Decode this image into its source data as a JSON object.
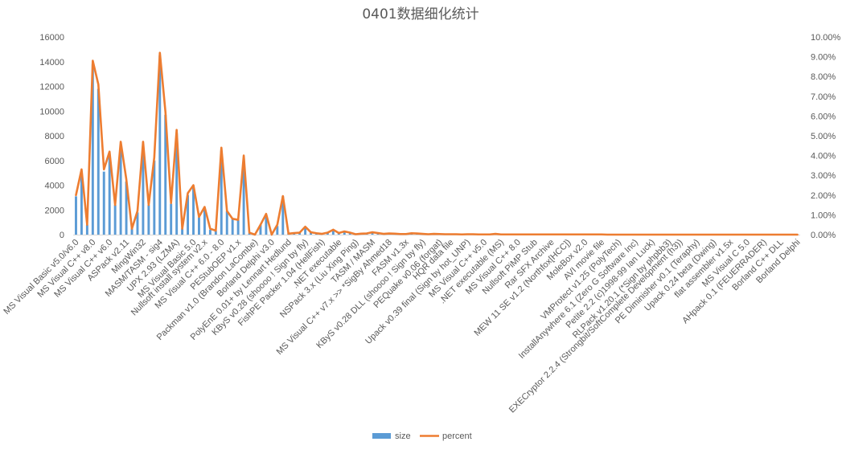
{
  "chart_data": {
    "type": "bar",
    "title": "0401数据细化统计",
    "colors": {
      "size": "#5b9bd5",
      "percent": "#ed7d31",
      "grid": "#d9d9d9",
      "text": "#595959"
    },
    "y_left": {
      "ylim": [
        0,
        16000
      ],
      "ticks": [
        "0",
        "2000",
        "4000",
        "6000",
        "8000",
        "10000",
        "12000",
        "14000",
        "16000"
      ]
    },
    "y_right": {
      "ylim": [
        0,
        10
      ],
      "unit": "%",
      "ticks": [
        "0.00%",
        "1.00%",
        "2.00%",
        "3.00%",
        "4.00%",
        "5.00%",
        "6.00%",
        "7.00%",
        "8.00%",
        "9.00%",
        "10.00%"
      ]
    },
    "category_count": 130,
    "category_labels": [
      "MS Visual Basic v5.0/v6.0",
      "MS Visual C++ v8.0",
      "MS Visual C++ v6.0",
      "ASPack v2.11",
      "MingWin32",
      "MASM/TASM - sig4",
      "UPX 2.93 (LZMA)",
      "MS Visual Basic 5.0",
      "Nullsoft install system v2.x",
      "MS Visual C++ 6.0 - 8.0",
      "PEStubOEP v1.x",
      "Packman v1.0 (Brandon LaCombe)",
      "Borland Delphi v3.0",
      "PolyEnE 0.01+ by Lennart Hedlund",
      "KByS v0.28 (shoooo ! Sign by fly)",
      "FishPE Packer 1.04 (HellFish)",
      ".NET executable",
      "NSPack 3.x (Liu Xing Ping)",
      "TASM / MASM",
      "MS Visual C++ v7.x >> *SigBy Ahmed18",
      "FASM v1.3x",
      "KByS v0.28 DLL (shoooo ! Sign by fly)",
      "PEQuake v0.06 (forgat)",
      "HQR data file",
      "Upack v0.39 final (Sign by hot_UNP)",
      "MS Visual C++ v5.0",
      ".NET executable (MS)",
      "MS Visual C++ 8.0",
      "Nullsoft PiMP Stub",
      "Rar SFX Archive",
      "MEW 11 SE v1.2 (Northfox[HCC])",
      "MoleBox v2.0",
      "AVI movie file",
      "VMProtect v1.25 (PolyTech)",
      "InstallAnywhere 6.1 (Zero G Software Inc)",
      "Petite 2.2 (c)1998-99 Ian Luck)",
      "RLPack v1.20.1 (*Sign by phpbb3)",
      "EXECryptor 2.2.4 (Strongbit/SoftComplete Development (h3))",
      "PE Diminisher v0.1 (Teraphy)",
      "Upack 0.24 beta (Dwing)",
      "flat assembler v1.5x",
      "MS Visual C 5.0",
      "AHpack 0.1 (FEUERRADER)",
      "Borland C++ DLL",
      "Borland Delphi"
    ],
    "series": [
      {
        "name": "size",
        "type": "bar",
        "axis": "left",
        "values": [
          3100,
          5100,
          800,
          13800,
          11800,
          5100,
          6400,
          2400,
          7300,
          4300,
          500,
          1800,
          7200,
          2400,
          6000,
          14500,
          9700,
          2500,
          8200,
          500,
          3200,
          3800,
          1400,
          2200,
          400,
          300,
          6800,
          1900,
          1300,
          1200,
          6200,
          100,
          0,
          800,
          1600,
          0,
          700,
          3100,
          100,
          120,
          130,
          650,
          200,
          110,
          60,
          150,
          380,
          120,
          250,
          160,
          30,
          70,
          90,
          180,
          120,
          60,
          90,
          70,
          40,
          50,
          110,
          90,
          60,
          30,
          60,
          40,
          30,
          30,
          30,
          20,
          30,
          25,
          20,
          20,
          20,
          60,
          20,
          15,
          15,
          15,
          15,
          15,
          15,
          12,
          12,
          10,
          10,
          10,
          10,
          10,
          8,
          8,
          8,
          8,
          8,
          6,
          6,
          6,
          6,
          6,
          5,
          5,
          5,
          5,
          5,
          4,
          4,
          4,
          4,
          4,
          3,
          3,
          3,
          3,
          3,
          2,
          2,
          2,
          2,
          2,
          2,
          2,
          2,
          2,
          2,
          2,
          2,
          2,
          2,
          2
        ]
      },
      {
        "name": "percent",
        "type": "line",
        "axis": "right",
        "values": [
          2.0,
          3.3,
          0.5,
          8.8,
          7.6,
          3.3,
          4.2,
          1.5,
          4.7,
          2.8,
          0.3,
          1.2,
          4.7,
          1.5,
          3.9,
          9.2,
          6.2,
          1.6,
          5.3,
          0.3,
          2.1,
          2.5,
          0.9,
          1.4,
          0.3,
          0.2,
          4.4,
          1.2,
          0.8,
          0.75,
          4.0,
          0.1,
          0.0,
          0.5,
          1.05,
          0.0,
          0.5,
          1.95,
          0.05,
          0.08,
          0.1,
          0.4,
          0.12,
          0.07,
          0.04,
          0.1,
          0.25,
          0.08,
          0.16,
          0.1,
          0.02,
          0.05,
          0.06,
          0.12,
          0.08,
          0.04,
          0.06,
          0.05,
          0.03,
          0.03,
          0.07,
          0.06,
          0.04,
          0.02,
          0.04,
          0.03,
          0.02,
          0.02,
          0.02,
          0.01,
          0.02,
          0.02,
          0.01,
          0.01,
          0.01,
          0.04,
          0.01,
          0.01,
          0.01,
          0.01,
          0.01,
          0.01,
          0.01,
          0.01,
          0.01,
          0.01,
          0.01,
          0.01,
          0.01,
          0.01,
          0.01,
          0.01,
          0.01,
          0.01,
          0.01,
          0.0,
          0.0,
          0.0,
          0.0,
          0.0,
          0.0,
          0.0,
          0.0,
          0.0,
          0.0,
          0.0,
          0.0,
          0.0,
          0.0,
          0.0,
          0.0,
          0.0,
          0.0,
          0.0,
          0.0,
          0.0,
          0.0,
          0.0,
          0.0,
          0.0,
          0.0,
          0.0,
          0.0,
          0.0,
          0.0,
          0.0,
          0.0,
          0.0,
          0.0,
          0.0
        ]
      }
    ],
    "legend": {
      "position": "bottom",
      "items": [
        "size",
        "percent"
      ]
    },
    "grid": false
  }
}
